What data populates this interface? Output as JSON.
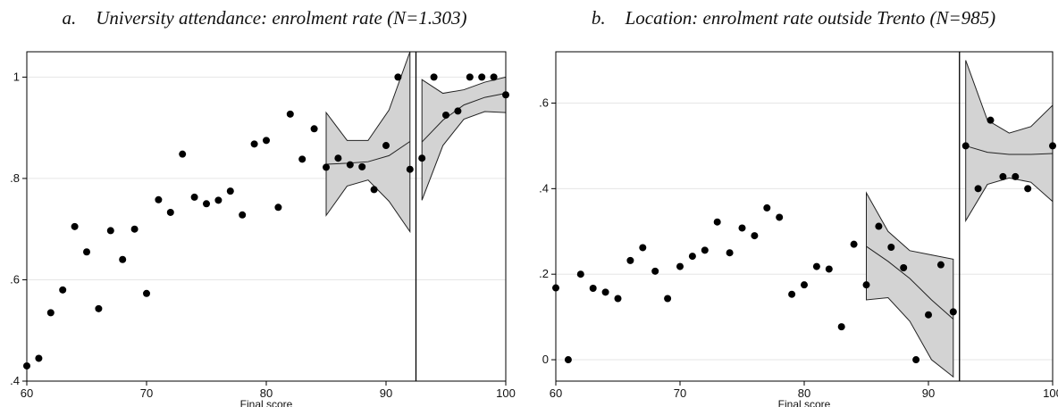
{
  "chart_data": [
    {
      "type": "scatter",
      "panel_letter": "a.",
      "title": "University attendance: enrolment rate (N=1.303)",
      "xlabel": "Final score",
      "ylabel": "",
      "xlim": [
        60,
        100
      ],
      "ylim": [
        0.4,
        1.05
      ],
      "xticks": [
        60,
        70,
        80,
        90,
        100
      ],
      "xtick_labels": [
        "60",
        "70",
        "80",
        "90",
        "100"
      ],
      "yticks": [
        0.4,
        0.6,
        0.8,
        1.0
      ],
      "ytick_labels": [
        ".4",
        ".6",
        ".8",
        "1"
      ],
      "grid": "horizontal",
      "cutoff": 92.5,
      "points": [
        [
          60,
          0.43
        ],
        [
          61,
          0.445
        ],
        [
          62,
          0.535
        ],
        [
          63,
          0.58
        ],
        [
          64,
          0.705
        ],
        [
          65,
          0.655
        ],
        [
          66,
          0.543
        ],
        [
          67,
          0.697
        ],
        [
          68,
          0.64
        ],
        [
          69,
          0.7
        ],
        [
          70,
          0.573
        ],
        [
          71,
          0.758
        ],
        [
          72,
          0.733
        ],
        [
          73,
          0.848
        ],
        [
          74,
          0.763
        ],
        [
          75,
          0.75
        ],
        [
          76,
          0.757
        ],
        [
          77,
          0.775
        ],
        [
          78,
          0.728
        ],
        [
          79,
          0.868
        ],
        [
          80,
          0.875
        ],
        [
          81,
          0.743
        ],
        [
          82,
          0.927
        ],
        [
          83,
          0.838
        ],
        [
          84,
          0.898
        ],
        [
          85,
          0.822
        ],
        [
          86,
          0.84
        ],
        [
          87,
          0.827
        ],
        [
          88,
          0.823
        ],
        [
          89,
          0.778
        ],
        [
          90,
          0.865
        ],
        [
          91,
          1.0
        ],
        [
          92,
          0.818
        ],
        [
          93,
          0.84
        ],
        [
          94,
          1.0
        ],
        [
          95,
          0.925
        ],
        [
          96,
          0.933
        ],
        [
          97,
          1.0
        ],
        [
          98,
          1.0
        ],
        [
          99,
          1.0
        ],
        [
          100,
          0.965
        ]
      ],
      "fits": [
        {
          "x": [
            85,
            86.75,
            88.5,
            90.25,
            92
          ],
          "fit": [
            0.828,
            0.83,
            0.833,
            0.845,
            0.873
          ],
          "lower": [
            0.727,
            0.785,
            0.797,
            0.755,
            0.695
          ],
          "upper": [
            0.93,
            0.875,
            0.875,
            0.935,
            1.05
          ]
        },
        {
          "x": [
            93,
            94.75,
            96.5,
            98.25,
            100
          ],
          "fit": [
            0.872,
            0.915,
            0.945,
            0.96,
            0.968
          ],
          "lower": [
            0.757,
            0.865,
            0.917,
            0.932,
            0.93
          ],
          "upper": [
            0.995,
            0.968,
            0.975,
            0.99,
            1.0
          ]
        }
      ]
    },
    {
      "type": "scatter",
      "panel_letter": "b.",
      "title": "Location: enrolment rate outside Trento (N=985)",
      "xlabel": "Final score",
      "ylabel": "",
      "xlim": [
        60,
        100
      ],
      "ylim": [
        -0.05,
        0.72
      ],
      "xticks": [
        60,
        70,
        80,
        90,
        100
      ],
      "xtick_labels": [
        "60",
        "70",
        "80",
        "90",
        "100"
      ],
      "yticks": [
        0,
        0.2,
        0.4,
        0.6
      ],
      "ytick_labels": [
        "0",
        ".2",
        ".4",
        ".6"
      ],
      "grid": "horizontal",
      "cutoff": 92.5,
      "points": [
        [
          60,
          0.168
        ],
        [
          61,
          0.0
        ],
        [
          62,
          0.2
        ],
        [
          63,
          0.167
        ],
        [
          64,
          0.158
        ],
        [
          65,
          0.143
        ],
        [
          66,
          0.232
        ],
        [
          67,
          0.262
        ],
        [
          68,
          0.207
        ],
        [
          69,
          0.143
        ],
        [
          70,
          0.218
        ],
        [
          71,
          0.242
        ],
        [
          72,
          0.256
        ],
        [
          73,
          0.322
        ],
        [
          74,
          0.25
        ],
        [
          75,
          0.308
        ],
        [
          76,
          0.29
        ],
        [
          77,
          0.355
        ],
        [
          78,
          0.333
        ],
        [
          79,
          0.153
        ],
        [
          80,
          0.175
        ],
        [
          81,
          0.218
        ],
        [
          82,
          0.212
        ],
        [
          83,
          0.077
        ],
        [
          84,
          0.27
        ],
        [
          85,
          0.175
        ],
        [
          86,
          0.312
        ],
        [
          87,
          0.263
        ],
        [
          88,
          0.215
        ],
        [
          89,
          0.0
        ],
        [
          90,
          0.105
        ],
        [
          91,
          0.222
        ],
        [
          92,
          0.112
        ],
        [
          93,
          0.5
        ],
        [
          94,
          0.4
        ],
        [
          95,
          0.56
        ],
        [
          96,
          0.428
        ],
        [
          97,
          0.428
        ],
        [
          98,
          0.4
        ],
        [
          100,
          0.5
        ]
      ],
      "fits": [
        {
          "x": [
            85,
            86.75,
            88.5,
            90.25,
            92
          ],
          "fit": [
            0.265,
            0.23,
            0.19,
            0.14,
            0.095
          ],
          "lower": [
            0.14,
            0.145,
            0.09,
            0.0,
            -0.04
          ],
          "upper": [
            0.39,
            0.3,
            0.255,
            0.245,
            0.235
          ]
        },
        {
          "x": [
            93,
            94.75,
            96.5,
            98.25,
            100
          ],
          "fit": [
            0.5,
            0.485,
            0.48,
            0.48,
            0.482
          ],
          "lower": [
            0.325,
            0.41,
            0.425,
            0.415,
            0.37
          ],
          "upper": [
            0.7,
            0.56,
            0.53,
            0.545,
            0.595
          ]
        }
      ]
    }
  ]
}
